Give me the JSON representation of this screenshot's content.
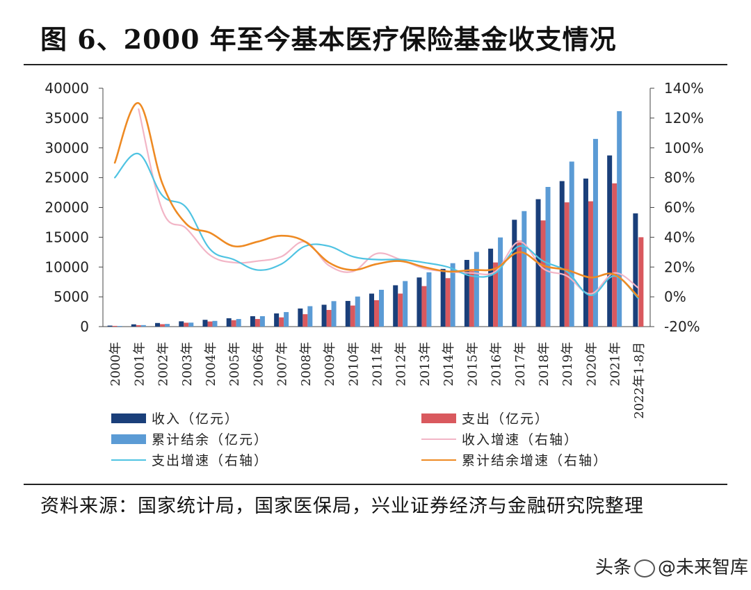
{
  "title": "图 6、2000 年至今基本医疗保险基金收支情况",
  "source_text": "资料来源：国家统计局，国家医保局，兴业证券经济与金融研究院整理",
  "watermark": {
    "prefix": "头条",
    "name": "@未来智库"
  },
  "chart_data": {
    "type": "bar",
    "categories": [
      "2000年",
      "2001年",
      "2002年",
      "2003年",
      "2004年",
      "2005年",
      "2006年",
      "2007年",
      "2008年",
      "2009年",
      "2010年",
      "2011年",
      "2012年",
      "2013年",
      "2014年",
      "2015年",
      "2016年",
      "2017年",
      "2018年",
      "2019年",
      "2020年",
      "2021年",
      "2022年1-8月"
    ],
    "left_axis": {
      "min": 0,
      "max": 40000,
      "ticks": [
        "0",
        "5000",
        "10000",
        "15000",
        "20000",
        "25000",
        "30000",
        "35000",
        "40000"
      ]
    },
    "right_axis": {
      "min": -20,
      "max": 140,
      "unit": "%",
      "ticks": [
        "-20%",
        "0%",
        "20%",
        "40%",
        "60%",
        "80%",
        "100%",
        "120%",
        "140%"
      ]
    },
    "bar_series": [
      {
        "name": "收入（亿元）",
        "color": "#1a3f7a",
        "values": [
          170,
          384,
          608,
          890,
          1141,
          1405,
          1747,
          2214,
          3040,
          3672,
          4309,
          5539,
          6939,
          8248,
          9687,
          11193,
          13084,
          17932,
          21384,
          24421,
          24846,
          28727,
          19000
        ]
      },
      {
        "name": "支出（亿元）",
        "color": "#d9595e",
        "values": [
          125,
          244,
          409,
          654,
          862,
          1079,
          1277,
          1552,
          2084,
          2797,
          3538,
          4431,
          5544,
          6801,
          8134,
          9312,
          10767,
          14422,
          17822,
          20854,
          21032,
          24043,
          15000
        ]
      },
      {
        "name": "累计结余（亿元）",
        "color": "#5b9bd5",
        "values": [
          110,
          253,
          451,
          670,
          958,
          1278,
          1752,
          2441,
          3432,
          4276,
          5047,
          6180,
          7644,
          9116,
          10645,
          12543,
          14964,
          19386,
          23440,
          27697,
          31500,
          36156,
          null
        ]
      }
    ],
    "line_series": [
      {
        "name": "收入增速（右轴）",
        "color": "#f2b5c6",
        "values": [
          null,
          126,
          58,
          46,
          28,
          23,
          24,
          27,
          37,
          21,
          17,
          29,
          25,
          19,
          17,
          16,
          17,
          37,
          19,
          14,
          2,
          16,
          6
        ]
      },
      {
        "name": "支出增速（右轴）",
        "color": "#4fc3e2",
        "values": [
          80,
          96,
          68,
          60,
          32,
          25,
          18,
          22,
          34,
          34,
          27,
          25,
          25,
          23,
          20,
          14,
          16,
          34,
          24,
          17,
          1,
          14,
          -1
        ]
      },
      {
        "name": "累计结余增速（右轴）",
        "color": "#ee8a23",
        "values": [
          90,
          130,
          76,
          49,
          43,
          34,
          37,
          41,
          37,
          23,
          18,
          22,
          24,
          20,
          17,
          18,
          19,
          30,
          21,
          18,
          13,
          15,
          0
        ]
      }
    ]
  }
}
